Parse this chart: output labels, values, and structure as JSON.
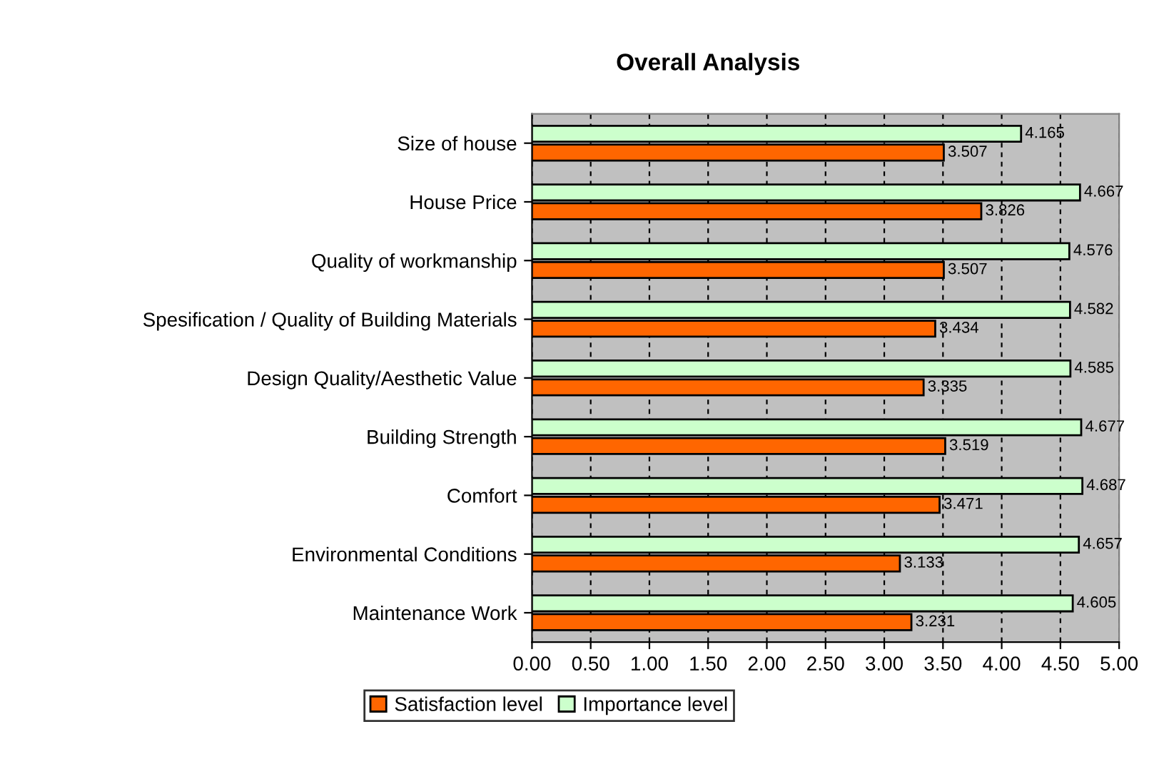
{
  "chart_data": {
    "type": "bar",
    "orientation": "horizontal",
    "title": "Overall Analysis",
    "categories": [
      "Size of house",
      "House Price",
      "Quality of workmanship",
      "Spesification / Quality of Building Materials",
      "Design Quality/Aesthetic Value",
      "Building Strength",
      "Comfort",
      "Environmental Conditions",
      "Maintenance Work"
    ],
    "series": [
      {
        "name": "Satisfaction level",
        "color": "#ff6600",
        "values": [
          3.507,
          3.826,
          3.507,
          3.434,
          3.335,
          3.519,
          3.471,
          3.133,
          3.231
        ]
      },
      {
        "name": "Importance level",
        "color": "#ccffcc",
        "values": [
          4.165,
          4.667,
          4.576,
          4.582,
          4.585,
          4.677,
          4.687,
          4.657,
          4.605
        ]
      }
    ],
    "xlim": [
      0,
      5
    ],
    "xticks": [
      {
        "value": 0,
        "label": "0.00"
      },
      {
        "value": 0.5,
        "label": "0.50"
      },
      {
        "value": 1,
        "label": "1.00"
      },
      {
        "value": 1.5,
        "label": "1.50"
      },
      {
        "value": 2,
        "label": "2.00"
      },
      {
        "value": 2.5,
        "label": "2.50"
      },
      {
        "value": 3,
        "label": "3.00"
      },
      {
        "value": 3.5,
        "label": "3.50"
      },
      {
        "value": 4,
        "label": "4.00"
      },
      {
        "value": 4.5,
        "label": "4.50"
      },
      {
        "value": 5,
        "label": "5.00"
      }
    ],
    "grid": "x",
    "legend": "bottom",
    "data_labels": true
  }
}
